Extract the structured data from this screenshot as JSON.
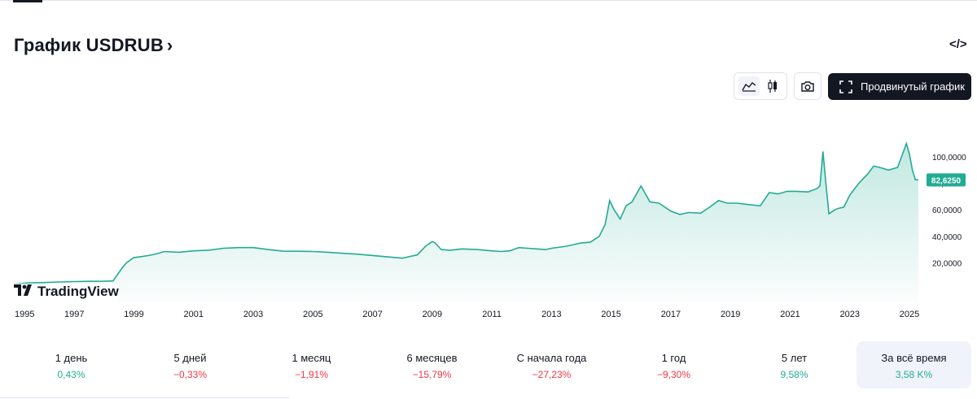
{
  "header": {
    "title": "График USDRUB",
    "title_chevron": "›",
    "embed_icon_label": "</>"
  },
  "toolbar": {
    "line_chart_icon": "line-chart-icon",
    "candles_icon": "candlestick-icon",
    "camera_icon": "camera-icon",
    "advanced_label": "Продвинутый график"
  },
  "colors": {
    "line": "#22ab94",
    "fill_top": "#22ab94",
    "badge_bg": "#22ab94",
    "positive": "#22ab94",
    "negative": "#f23645",
    "text": "#131722",
    "axis_text": "#131722"
  },
  "watermark": "TradingView",
  "chart_data": {
    "type": "area",
    "title": "",
    "xlabel": "",
    "ylabel": "",
    "xlim": [
      1995.0,
      2025.3
    ],
    "ylim": [
      0,
      120000
    ],
    "grid": false,
    "x_ticks": [
      "1995",
      "1997",
      "1999",
      "2001",
      "2003",
      "2005",
      "2007",
      "2009",
      "2011",
      "2013",
      "2015",
      "2017",
      "2019",
      "2021",
      "2023",
      "2025"
    ],
    "y_ticks": [
      "100,0000",
      "80,0000",
      "60,0000",
      "40,0000",
      "20,0000"
    ],
    "y_tick_values": [
      100000,
      80000,
      60000,
      40000,
      20000
    ],
    "last_price_label": "82,6250",
    "last_price": 82625,
    "series": [
      {
        "x": [
          1995.0,
          1995.5,
          1996.0,
          1996.5,
          1997.0,
          1997.5,
          1998.0,
          1998.3,
          1998.6,
          1998.75,
          1999.0,
          1999.2,
          1999.5,
          1999.8,
          2000.0,
          2000.5,
          2001.0,
          2001.5,
          2002.0,
          2002.5,
          2003.0,
          2003.5,
          2004.0,
          2004.5,
          2005.0,
          2005.5,
          2006.0,
          2006.5,
          2007.0,
          2007.5,
          2008.0,
          2008.5,
          2008.8,
          2009.0,
          2009.1,
          2009.3,
          2009.6,
          2010.0,
          2010.5,
          2011.0,
          2011.3,
          2011.6,
          2011.9,
          2012.2,
          2012.5,
          2012.8,
          2013.0,
          2013.5,
          2014.0,
          2014.3,
          2014.6,
          2014.8,
          2014.95,
          2015.1,
          2015.3,
          2015.5,
          2015.7,
          2016.0,
          2016.3,
          2016.6,
          2017.0,
          2017.3,
          2017.6,
          2018.0,
          2018.3,
          2018.6,
          2018.9,
          2019.2,
          2019.6,
          2020.0,
          2020.3,
          2020.6,
          2020.9,
          2021.2,
          2021.6,
          2021.9,
          2022.0,
          2022.1,
          2022.2,
          2022.3,
          2022.5,
          2022.6,
          2022.8,
          2023.0,
          2023.3,
          2023.6,
          2023.8,
          2024.0,
          2024.3,
          2024.6,
          2024.8,
          2024.9,
          2025.0,
          2025.1,
          2025.2,
          2025.3
        ],
        "values": [
          4000,
          4900,
          5100,
          5500,
          5800,
          6000,
          6100,
          6300,
          16000,
          20000,
          24000,
          24500,
          25500,
          27000,
          28500,
          28000,
          29000,
          29500,
          31000,
          31500,
          31500,
          30000,
          28800,
          28700,
          28500,
          28000,
          27200,
          26500,
          25500,
          24500,
          23500,
          26000,
          33000,
          36000,
          35000,
          30000,
          29500,
          30500,
          30000,
          29000,
          28500,
          29000,
          31500,
          31000,
          30500,
          30000,
          31000,
          32500,
          35000,
          35500,
          40000,
          49000,
          67000,
          60000,
          53000,
          63000,
          66000,
          78000,
          66000,
          65000,
          59000,
          56500,
          58000,
          57500,
          62000,
          67000,
          65000,
          65000,
          64000,
          63000,
          73000,
          72000,
          74000,
          74000,
          73500,
          76000,
          78000,
          104000,
          80000,
          57000,
          60000,
          61000,
          62000,
          71000,
          80000,
          87000,
          93000,
          92000,
          90000,
          92000,
          104000,
          110000,
          102000,
          90000,
          82625,
          82625
        ]
      }
    ]
  },
  "performance": [
    {
      "label": "1 день",
      "value": "0,43%",
      "dir": "up"
    },
    {
      "label": "5 дней",
      "value": "−0,33%",
      "dir": "down"
    },
    {
      "label": "1 месяц",
      "value": "−1,91%",
      "dir": "down"
    },
    {
      "label": "6 месяцев",
      "value": "−15,79%",
      "dir": "down"
    },
    {
      "label": "С начала года",
      "value": "−27,23%",
      "dir": "down"
    },
    {
      "label": "1 год",
      "value": "−9,30%",
      "dir": "down"
    },
    {
      "label": "5 лет",
      "value": "9,58%",
      "dir": "up"
    },
    {
      "label": "За всё время",
      "value": "3,58 K%",
      "dir": "up",
      "selected": true
    }
  ]
}
